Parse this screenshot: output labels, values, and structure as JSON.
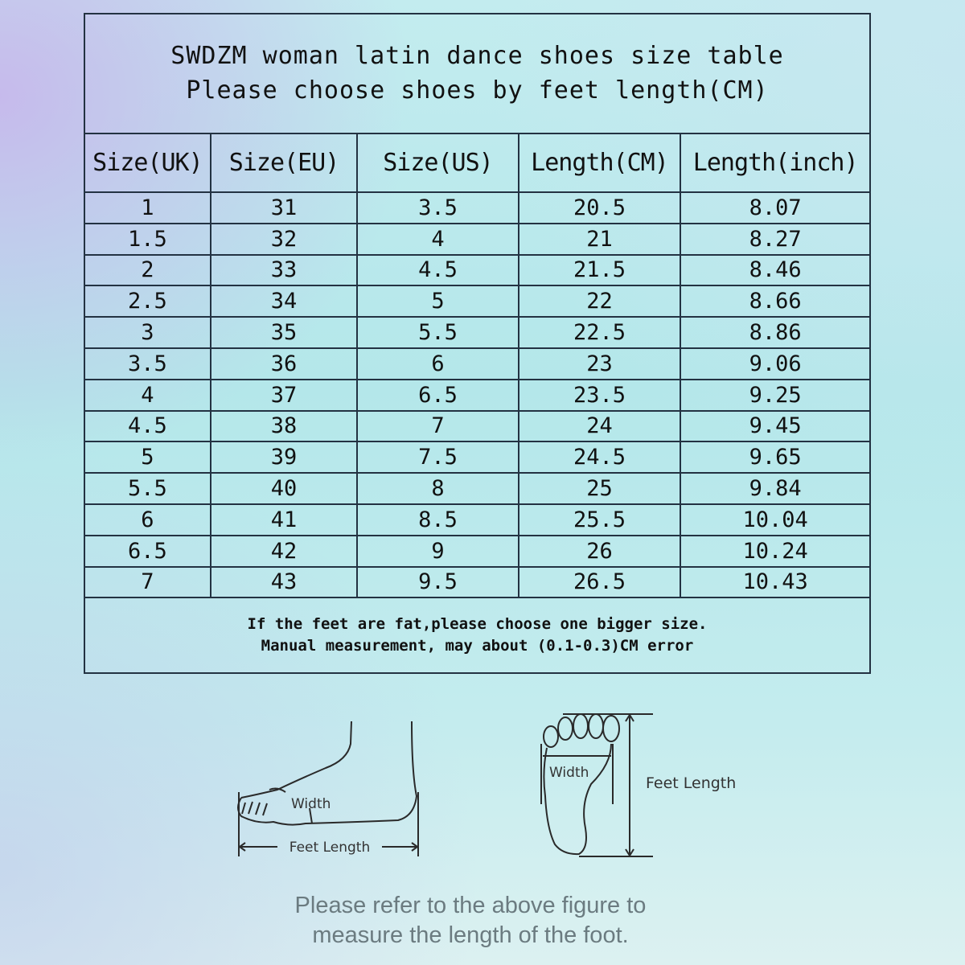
{
  "title": {
    "line1": "SWDZM woman latin dance shoes size table",
    "line2": "Please choose shoes by feet length(CM)"
  },
  "table": {
    "headers": [
      "Size(UK)",
      "Size(EU)",
      "Size(US)",
      "Length(CM)",
      "Length(inch)"
    ],
    "rows": [
      [
        "1",
        "31",
        "3.5",
        "20.5",
        "8.07"
      ],
      [
        "1.5",
        "32",
        "4",
        "21",
        "8.27"
      ],
      [
        "2",
        "33",
        "4.5",
        "21.5",
        "8.46"
      ],
      [
        "2.5",
        "34",
        "5",
        "22",
        "8.66"
      ],
      [
        "3",
        "35",
        "5.5",
        "22.5",
        "8.86"
      ],
      [
        "3.5",
        "36",
        "6",
        "23",
        "9.06"
      ],
      [
        "4",
        "37",
        "6.5",
        "23.5",
        "9.25"
      ],
      [
        "4.5",
        "38",
        "7",
        "24",
        "9.45"
      ],
      [
        "5",
        "39",
        "7.5",
        "24.5",
        "9.65"
      ],
      [
        "5.5",
        "40",
        "8",
        "25",
        "9.84"
      ],
      [
        "6",
        "41",
        "8.5",
        "25.5",
        "10.04"
      ],
      [
        "6.5",
        "42",
        "9",
        "26",
        "10.24"
      ],
      [
        "7",
        "43",
        "9.5",
        "26.5",
        "10.43"
      ]
    ]
  },
  "notes": {
    "line1": "If the feet are fat,please choose one bigger size.",
    "line2": "Manual measurement, may about (0.1-0.3)CM error"
  },
  "diagram": {
    "side_width_label": "Width",
    "side_length_label": "Feet Length",
    "sole_width_label": "Width",
    "sole_length_label": "Feet Length"
  },
  "footer": {
    "line1": "Please refer to the above figure to",
    "line2": "measure the length of the foot."
  }
}
